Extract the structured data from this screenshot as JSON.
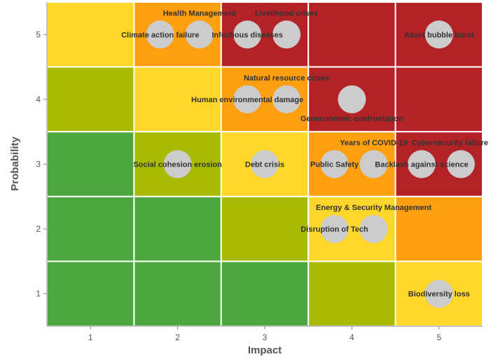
{
  "chart_data": {
    "type": "scatter",
    "xlabel": "Impact",
    "ylabel": "Probability",
    "xlim": [
      0.5,
      5.5
    ],
    "ylim": [
      0.5,
      5.5
    ],
    "xticks": [
      "1",
      "2",
      "3",
      "4",
      "5"
    ],
    "yticks": [
      "1",
      "2",
      "3",
      "4",
      "5"
    ],
    "colors": {
      "green": "#4aa83f",
      "olive": "#a8bb00",
      "yellow": "#fed72a",
      "orange": "#fe9f10",
      "red": "#b22226",
      "point": "#cccccc"
    },
    "heatmap_rows_top_to_bottom": [
      [
        "yellow",
        "orange",
        "red",
        "red",
        "red"
      ],
      [
        "olive",
        "yellow",
        "orange",
        "red",
        "red"
      ],
      [
        "green",
        "olive",
        "yellow",
        "orange",
        "red"
      ],
      [
        "green",
        "green",
        "olive",
        "yellow",
        "orange"
      ],
      [
        "green",
        "green",
        "green",
        "olive",
        "yellow"
      ]
    ],
    "points": [
      {
        "label": "Climate action failure",
        "x": 1.8,
        "y": 5
      },
      {
        "label": "Health Management",
        "x": 2.25,
        "y": 5
      },
      {
        "label": "Infectious diseases",
        "x": 2.8,
        "y": 5
      },
      {
        "label": "Livelihood crises",
        "x": 3.25,
        "y": 5
      },
      {
        "label": "Asset bubble burst",
        "x": 5,
        "y": 5
      },
      {
        "label": "Human environmental damage",
        "x": 2.8,
        "y": 4
      },
      {
        "label": "Natural resource crises",
        "x": 3.25,
        "y": 4
      },
      {
        "label": "Geoeconomic confrontation",
        "x": 4,
        "y": 4
      },
      {
        "label": "Social cohesion erosion",
        "x": 2,
        "y": 3
      },
      {
        "label": "Debt crisis",
        "x": 3,
        "y": 3
      },
      {
        "label": "Public Safety",
        "x": 3.8,
        "y": 3
      },
      {
        "label": "Years of COVID-19",
        "x": 4.25,
        "y": 3
      },
      {
        "label": "Backlash against science",
        "x": 4.8,
        "y": 3
      },
      {
        "label": "Cybersecurity failure",
        "x": 5.25,
        "y": 3
      },
      {
        "label": "Disruption of Tech",
        "x": 3.8,
        "y": 2
      },
      {
        "label": "Energy & Security Management",
        "x": 4.25,
        "y": 2
      },
      {
        "label": "Biodiversity loss",
        "x": 5,
        "y": 1
      }
    ]
  }
}
